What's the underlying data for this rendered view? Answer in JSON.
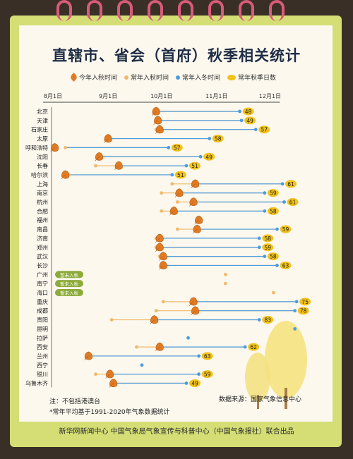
{
  "title": "直辖市、省会（首府）秋季相关统计",
  "legend": [
    {
      "label": "今年入秋时间"
    },
    {
      "label": "常年入秋时间"
    },
    {
      "label": "常年入冬时间"
    },
    {
      "label": "常年秋季日数"
    }
  ],
  "colors": {
    "this_year": "#e07b24",
    "normal_autumn": "#f0b96b",
    "normal_winter": "#4d9be0",
    "days_badge": "#f2c21b",
    "card": "#d4de75",
    "ring": "#d95b7c"
  },
  "notes": {
    "note1": "注：不包括港澳台",
    "note2": "*常年平均基于1991-2020年气象数据统计",
    "source": "数据来源：国家气象信息中心",
    "footer": "新华网新闻中心  中国气象局气象宣传与科普中心（中国气象报社）联合出品"
  },
  "chart_data": {
    "type": "timeline",
    "title": "直辖市、省会（首府）秋季相关统计",
    "x_axis": {
      "min": "08-01",
      "max": "12-31",
      "ticks": [
        "8月1日",
        "9月1日",
        "10月1日",
        "11月1日",
        "12月1日"
      ],
      "tick_dates": [
        "08-01",
        "09-01",
        "10-01",
        "11-01",
        "12-01"
      ]
    },
    "special_label": "暂未入秋",
    "cities": [
      {
        "city": "北京",
        "this_year": "09-28",
        "normal_autumn": "09-28",
        "normal_winter": "11-14",
        "days": "48"
      },
      {
        "city": "天津",
        "this_year": "09-29",
        "normal_autumn": "09-28",
        "normal_winter": "11-15",
        "days": "49"
      },
      {
        "city": "石家庄",
        "this_year": "09-30",
        "normal_autumn": "09-28",
        "normal_winter": "11-23",
        "days": "57"
      },
      {
        "city": "太原",
        "this_year": "09-01",
        "normal_autumn": "09-01",
        "normal_winter": "10-28",
        "days": "58"
      },
      {
        "city": "呼和浩特",
        "this_year": "08-02",
        "normal_autumn": "08-08",
        "normal_winter": "10-05",
        "days": "57"
      },
      {
        "city": "沈阳",
        "this_year": "08-27",
        "normal_autumn": "08-28",
        "normal_winter": "10-23",
        "days": "49"
      },
      {
        "city": "长春",
        "this_year": "09-07",
        "normal_autumn": "08-25",
        "normal_winter": "10-15",
        "days": "51"
      },
      {
        "city": "哈尔滨",
        "this_year": "08-08",
        "normal_autumn": "08-10",
        "normal_winter": "10-07",
        "days": "51"
      },
      {
        "city": "上海",
        "this_year": "10-20",
        "normal_autumn": "10-07",
        "normal_winter": "12-08",
        "days": "61"
      },
      {
        "city": "南京",
        "this_year": "10-11",
        "normal_autumn": "10-01",
        "normal_winter": "11-28",
        "days": "59"
      },
      {
        "city": "杭州",
        "this_year": "10-19",
        "normal_autumn": "10-10",
        "normal_winter": "12-09",
        "days": "61"
      },
      {
        "city": "合肥",
        "this_year": "10-08",
        "normal_autumn": "10-01",
        "normal_winter": "11-28",
        "days": "58"
      },
      {
        "city": "福州",
        "this_year": "10-22",
        "normal_autumn": "",
        "normal_winter": "",
        "days": ""
      },
      {
        "city": "南昌",
        "this_year": "10-21",
        "normal_autumn": "10-10",
        "normal_winter": "12-05",
        "days": "59"
      },
      {
        "city": "济南",
        "this_year": "09-30",
        "normal_autumn": "09-28",
        "normal_winter": "11-25",
        "days": "58"
      },
      {
        "city": "郑州",
        "this_year": "09-30",
        "normal_autumn": "09-28",
        "normal_winter": "11-25",
        "days": "59"
      },
      {
        "city": "武汉",
        "this_year": "10-02",
        "normal_autumn": "09-30",
        "normal_winter": "11-28",
        "days": "58"
      },
      {
        "city": "长沙",
        "this_year": "10-02",
        "normal_autumn": "10-03",
        "normal_winter": "12-05",
        "days": "63"
      },
      {
        "city": "广州",
        "this_year": "",
        "normal_autumn": "11-06",
        "normal_winter": "",
        "days": "",
        "note": "暂未入秋"
      },
      {
        "city": "南宁",
        "this_year": "",
        "normal_autumn": "11-06",
        "normal_winter": "",
        "days": "",
        "note": "暂未入秋"
      },
      {
        "city": "海口",
        "this_year": "",
        "normal_autumn": "12-03",
        "normal_winter": "",
        "days": "",
        "note": "暂未入秋"
      },
      {
        "city": "重庆",
        "this_year": "10-19",
        "normal_autumn": "10-02",
        "normal_winter": "12-16",
        "days": "75"
      },
      {
        "city": "成都",
        "this_year": "10-20",
        "normal_autumn": "09-28",
        "normal_winter": "12-15",
        "days": "78"
      },
      {
        "city": "贵阳",
        "this_year": "09-27",
        "normal_autumn": "09-03",
        "normal_winter": "11-25",
        "days": "83"
      },
      {
        "city": "昆明",
        "this_year": "",
        "normal_autumn": "",
        "normal_winter": "12-15",
        "days": ""
      },
      {
        "city": "拉萨",
        "this_year": "",
        "normal_autumn": "",
        "normal_winter": "10-16",
        "days": ""
      },
      {
        "city": "西安",
        "this_year": "09-30",
        "normal_autumn": "09-17",
        "normal_winter": "11-17",
        "days": "62"
      },
      {
        "city": "兰州",
        "this_year": "08-21",
        "normal_autumn": "08-20",
        "normal_winter": "10-22",
        "days": "63"
      },
      {
        "city": "西宁",
        "this_year": "",
        "normal_autumn": "",
        "normal_winter": "09-20",
        "days": ""
      },
      {
        "city": "银川",
        "this_year": "09-02",
        "normal_autumn": "08-25",
        "normal_winter": "10-22",
        "days": "59"
      },
      {
        "city": "乌鲁木齐",
        "this_year": "09-04",
        "normal_autumn": "09-03",
        "normal_winter": "10-15",
        "days": "49"
      }
    ]
  }
}
